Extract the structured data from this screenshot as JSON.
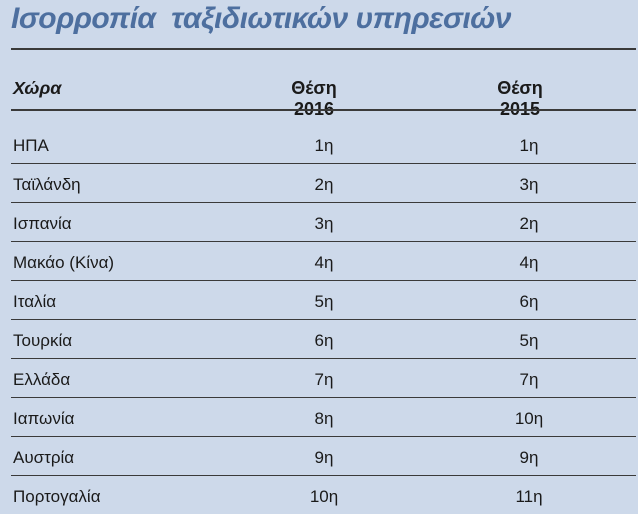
{
  "chart_data": {
    "type": "table",
    "title": "Ισορροπία  ταξιδιωτικών υπηρεσιών",
    "columns": [
      "Χώρα",
      "Θέση 2016",
      "Θέση 2015"
    ],
    "rows": [
      [
        "ΗΠΑ",
        "1η",
        "1η"
      ],
      [
        "Ταϊλάνδη",
        "2η",
        "3η"
      ],
      [
        "Ισπανία",
        "3η",
        "2η"
      ],
      [
        "Μακάο (Κίνα)",
        "4η",
        "4η"
      ],
      [
        "Ιταλία",
        "5η",
        "6η"
      ],
      [
        "Τουρκία",
        "6η",
        "5η"
      ],
      [
        "Ελλάδα",
        "7η",
        "7η"
      ],
      [
        "Ιαπωνία",
        "8η",
        "10η"
      ],
      [
        "Αυστρία",
        "9η",
        "9η"
      ],
      [
        "Πορτογαλία",
        "10η",
        "11η"
      ]
    ]
  },
  "colors": {
    "background": "#cdd9ea",
    "title": "#4d6f9f",
    "rule": "#3a3a3a"
  }
}
